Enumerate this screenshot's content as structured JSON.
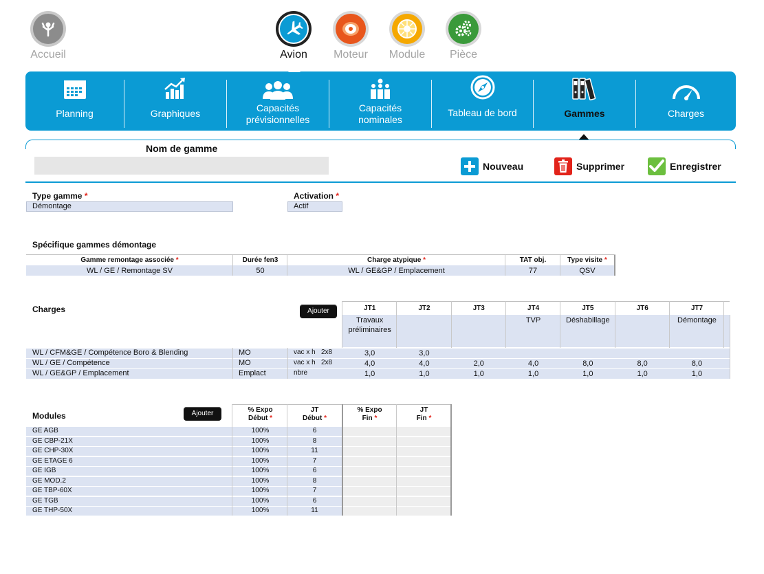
{
  "top_nav": [
    {
      "label": "Accueil",
      "icon": "wrench-man-icon",
      "active": false,
      "color": "#8c8c8c"
    },
    {
      "label": "Avion",
      "icon": "airplane-icon",
      "active": true,
      "color": "#0b9bd4"
    },
    {
      "label": "Moteur",
      "icon": "engine-icon",
      "active": false,
      "color": "#e8561c"
    },
    {
      "label": "Module",
      "icon": "fan-module-icon",
      "active": false,
      "color": "#f5a800"
    },
    {
      "label": "Pièce",
      "icon": "gears-icon",
      "active": false,
      "color": "#3a9a3a"
    }
  ],
  "menu": [
    {
      "label": "Planning",
      "icon": "calendar-icon"
    },
    {
      "label": "Graphiques",
      "icon": "bar-chart-icon"
    },
    {
      "label": "Capacités prévisionnelles",
      "line1": "Capacités",
      "line2": "prévisionnelles",
      "icon": "people-icon"
    },
    {
      "label": "Capacités nominales",
      "line1": "Capacités",
      "line2": "nominales",
      "icon": "person-group-icon"
    },
    {
      "label": "Tableau de bord",
      "icon": "compass-icon"
    },
    {
      "label": "Gammes",
      "icon": "binders-icon",
      "active": true
    },
    {
      "label": "Charges",
      "icon": "gauge-icon"
    }
  ],
  "header": {
    "nom_label": "Nom de gamme",
    "nom_value": "",
    "actions": {
      "new_label": "Nouveau",
      "delete_label": "Supprimer",
      "save_label": "Enregistrer"
    }
  },
  "form": {
    "type_label": "Type gamme",
    "type_value": "Démontage",
    "activation_label": "Activation",
    "activation_value": "Actif",
    "required_mark": "*"
  },
  "specifique": {
    "title": "Spécifique gammes démontage",
    "headers": [
      "Gamme remontage associée",
      "Durée fen3",
      "Charge atypique",
      "TAT obj.",
      "Type visite"
    ],
    "row": [
      "WL / GE / Remontage SV",
      "50",
      "WL / GE&GP / Emplacement",
      "77",
      "QSV"
    ]
  },
  "charges": {
    "title": "Charges",
    "add_label": "Ajouter",
    "jt_headers": [
      "JT1",
      "JT2",
      "JT3",
      "JT4",
      "JT5",
      "JT6",
      "JT7"
    ],
    "jt_desc": [
      [
        "Travaux",
        "préliminaires"
      ],
      [
        ""
      ],
      [
        ""
      ],
      [
        "TVP"
      ],
      [
        "Déshabillage"
      ],
      [
        ""
      ],
      [
        "Démontage"
      ]
    ],
    "rows": [
      {
        "name": "WL / CFM&GE / Compétence Boro & Blending",
        "type": "MO",
        "unit": "vac x h",
        "unit2": "2x8",
        "values": [
          "3,0",
          "3,0",
          "",
          "",
          "",
          "",
          ""
        ]
      },
      {
        "name": "WL / GE / Compétence",
        "type": "MO",
        "unit": "vac x h",
        "unit2": "2x8",
        "values": [
          "4,0",
          "4,0",
          "2,0",
          "4,0",
          "8,0",
          "8,0",
          "8,0"
        ]
      },
      {
        "name": "WL / GE&GP / Emplacement",
        "type": "Emplact",
        "unit": "nbre",
        "unit2": "",
        "values": [
          "1,0",
          "1,0",
          "1,0",
          "1,0",
          "1,0",
          "1,0",
          "1,0"
        ]
      }
    ]
  },
  "modules": {
    "title": "Modules",
    "add_label": "Ajouter",
    "headers": [
      [
        "% Expo",
        "Début"
      ],
      [
        "JT",
        "Début"
      ],
      [
        "% Expo",
        "Fin"
      ],
      [
        "JT",
        "Fin"
      ]
    ],
    "rows": [
      {
        "name": "GE AGB",
        "expo": "100%",
        "jt": "6"
      },
      {
        "name": "GE CBP-21X",
        "expo": "100%",
        "jt": "8"
      },
      {
        "name": "GE CHP-30X",
        "expo": "100%",
        "jt": "11"
      },
      {
        "name": "GE ETAGE 6",
        "expo": "100%",
        "jt": "7"
      },
      {
        "name": "GE IGB",
        "expo": "100%",
        "jt": "6"
      },
      {
        "name": "GE MOD.2",
        "expo": "100%",
        "jt": "8"
      },
      {
        "name": "GE TBP-60X",
        "expo": "100%",
        "jt": "7"
      },
      {
        "name": "GE TGB",
        "expo": "100%",
        "jt": "6"
      },
      {
        "name": "GE THP-50X",
        "expo": "100%",
        "jt": "11"
      }
    ]
  },
  "colors": {
    "accent": "#0b9bd4",
    "row_fill": "#dce3f2",
    "required": "#e2231a",
    "new_button": "#0b9bd4",
    "delete_button": "#e2231a",
    "save_button": "#6cbf3f"
  }
}
